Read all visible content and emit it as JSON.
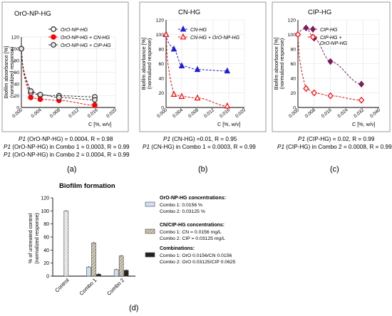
{
  "chart_data": [
    {
      "panel": "a",
      "type": "scatter",
      "title": "OrO-NP-HG",
      "ylabel": "Biofilm absorbance [%]\n(normalized response)",
      "xlabel": "C [%, w/v]",
      "xlim": [
        0,
        0.02
      ],
      "ylim": [
        0,
        120
      ],
      "xticks": [
        "0.000",
        "0.004",
        "0.008",
        "0.012",
        "0.016",
        "0.020"
      ],
      "yticks": [
        "0",
        "20",
        "40",
        "60",
        "80",
        "100",
        "120"
      ],
      "legend_position": "top-right",
      "grid": true,
      "series": [
        {
          "name": "OrO-NP-HG",
          "color": "#333333",
          "marker": "circle-open",
          "x": [
            0,
            0.002,
            0.004,
            0.008,
            0.0156
          ],
          "y": [
            100,
            25,
            21,
            20,
            18
          ]
        },
        {
          "name": "OrO-NP-HG + CN-HG",
          "color": "#ff0000",
          "marker": "circle",
          "x": [
            0,
            0.002,
            0.004,
            0.008,
            0.0156
          ],
          "y": [
            100,
            17,
            14,
            12,
            4
          ]
        },
        {
          "name": "OrO-NP-HG + CIP-HG",
          "color": "#333333",
          "marker": "circle-hatched",
          "x": [
            0,
            0.002,
            0.004,
            0.008,
            0.0156
          ],
          "y": [
            100,
            28,
            22,
            17,
            13
          ]
        }
      ],
      "captions": [
        {
          "p": "P1",
          "text": " (OrO-NP-HG) = 0.0004, R = 0.98"
        },
        {
          "p": "P1",
          "text": " (OrO-NP-HG) in Combo 1 = 0.0003, R = 0.99"
        },
        {
          "p": "P1",
          "text": " (OrO-NP-HG) in Combo 2 = 0.0004, R = 0.99"
        }
      ],
      "panel_label": "(a)"
    },
    {
      "panel": "b",
      "type": "scatter",
      "title": "CN-HG",
      "ylabel": "Biofilm absorbance [%]\n(normalized response)",
      "xlabel": "C [%, w/v]",
      "xlim": [
        0,
        0.02
      ],
      "ylim": [
        0,
        120
      ],
      "xticks": [
        "0.000",
        "0.004",
        "0.008",
        "0.012",
        "0.016",
        "0.020"
      ],
      "yticks": [
        "0",
        "20",
        "40",
        "60",
        "80",
        "100",
        "120"
      ],
      "legend_position": "top-right",
      "grid": true,
      "series": [
        {
          "name": "CN-HG",
          "color": "#1f1fd6",
          "marker": "triangle",
          "x": [
            0,
            0.002,
            0.004,
            0.008,
            0.0156
          ],
          "y": [
            100,
            80,
            57,
            52,
            50
          ]
        },
        {
          "name": "CN-HG + OrO-NP-HG",
          "color": "#ff0000",
          "marker": "triangle-open",
          "x": [
            0,
            0.002,
            0.004,
            0.008,
            0.0156
          ],
          "y": [
            100,
            18,
            15,
            13,
            2
          ]
        }
      ],
      "captions": [
        {
          "p": "P1",
          "text": " (CN-HG) =0.01, R = 0.95"
        },
        {
          "p": "P1",
          "text": " (CN-HG) in Combo 1 = 0.0003, R = 0.99"
        }
      ],
      "panel_label": "(b)"
    },
    {
      "panel": "c",
      "type": "scatter",
      "title": "CIP-HG",
      "ylabel": "Biofilm absorbance [%]\n(normalized response)",
      "xlabel": "C [%, w/v]",
      "xlim": [
        0,
        0.04
      ],
      "ylim": [
        0,
        120
      ],
      "xticks": [
        "0.000",
        "0.008",
        "0.016",
        "0.024",
        "0.032",
        "0.040"
      ],
      "yticks": [
        "0",
        "20",
        "40",
        "60",
        "80",
        "100",
        "120"
      ],
      "legend_position": "top-right",
      "grid": true,
      "series": [
        {
          "name": "CIP-HG",
          "color": "#7a1f5c",
          "marker": "diamond",
          "x": [
            0,
            0.004,
            0.008,
            0.016,
            0.03125
          ],
          "y": [
            100,
            109,
            95,
            63,
            32
          ]
        },
        {
          "name": "CIP-HG + OrO-NP-HG",
          "color": "#ff0000",
          "marker": "diamond-open",
          "x": [
            0,
            0.004,
            0.008,
            0.016,
            0.03125
          ],
          "y": [
            100,
            26,
            20,
            16,
            10
          ]
        }
      ],
      "captions": [
        {
          "p": "P1",
          "text": " (CIP-HG) = 0.02, R = 0.99"
        },
        {
          "p": "P1",
          "text": " (CIP-HG) in Combo 2 = 0.0008, R = 0.99"
        }
      ],
      "panel_label": "(c)"
    },
    {
      "panel": "d",
      "type": "bar",
      "title": "Biofilm formation",
      "ylabel": "% of untreated control\n(normalized response)",
      "xlabel": "",
      "categories": [
        "Control",
        "Combo 1",
        "Combo 2"
      ],
      "ylim": [
        0,
        120
      ],
      "yticks": [
        "0",
        "20",
        "40",
        "60",
        "80",
        "100",
        "120"
      ],
      "legend_position": "right",
      "series": [
        {
          "name": "OrO-NP-HG concentrations:",
          "color": "#cfe0f3",
          "values": [
            100,
            14,
            10
          ],
          "legend_lines": [
            "Combo 1: 0.0156 %",
            "Combo 2: 0.03125 %"
          ]
        },
        {
          "name": "CN/CIP-HG concentrations:",
          "color": "#a89f80",
          "values": [
            null,
            51,
            31
          ],
          "legend_lines": [
            "Combo 1: CN = 0.0156 mg/L",
            "Combo 2: CIP = 0.03125 mg/L"
          ]
        },
        {
          "name": "Combinations:",
          "color": "#222222",
          "values": [
            null,
            3,
            9
          ],
          "legend_lines": [
            "Combo 1: OrO 0.0156/CN 0.0156",
            "Combo 2: OrO 0.03125/CIP 0.0625"
          ]
        }
      ],
      "panel_label": "(d)"
    }
  ]
}
